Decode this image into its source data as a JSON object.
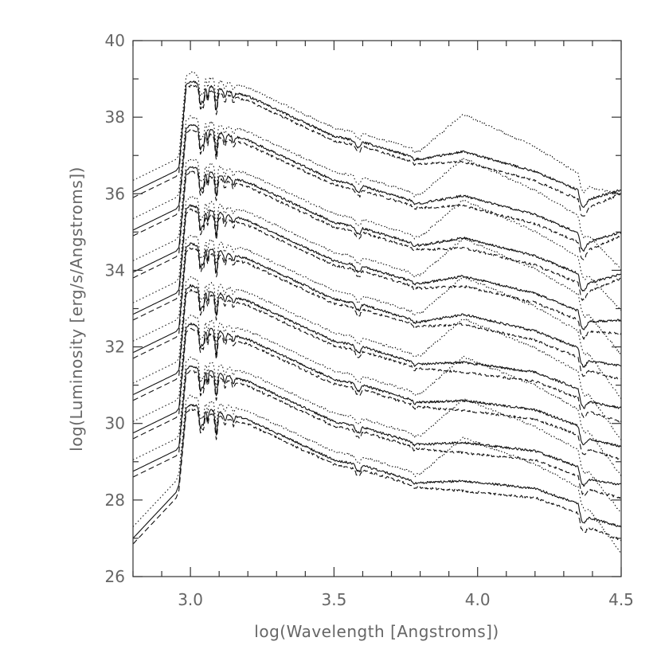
{
  "chart_data": {
    "type": "line",
    "title": "",
    "xlabel": "log(Wavelength [Angstroms])",
    "ylabel": "log(Luminosity [erg/s/Angstroms])",
    "xlim": [
      2.8,
      4.5
    ],
    "ylim": [
      26,
      40
    ],
    "x_major_ticks": [
      3.0,
      3.5,
      4.0,
      4.5
    ],
    "x_tick_labels": [
      "3.0",
      "3.5",
      "4.0",
      "4.5"
    ],
    "y_major_ticks": [
      26,
      28,
      30,
      32,
      34,
      36,
      38,
      40
    ],
    "y_tick_labels": [
      "26",
      "28",
      "30",
      "32",
      "34",
      "36",
      "38",
      "40"
    ],
    "grid": false,
    "curve_groups": [
      {
        "peak": 38.95,
        "uv": 36.6,
        "end_solid": 36.1
      },
      {
        "peak": 37.8,
        "uv": 35.6,
        "end_solid": 35.0
      },
      {
        "peak": 36.7,
        "uv": 34.5,
        "end_solid": 33.9
      },
      {
        "peak": 35.7,
        "uv": 33.4,
        "end_solid": 32.7
      },
      {
        "peak": 34.7,
        "uv": 32.4,
        "end_solid": 31.5
      },
      {
        "peak": 33.6,
        "uv": 31.3,
        "end_solid": 30.4
      },
      {
        "peak": 32.6,
        "uv": 30.3,
        "end_solid": 29.4
      },
      {
        "peak": 31.5,
        "uv": 29.3,
        "end_solid": 28.4
      },
      {
        "peak": 30.5,
        "uv": 27.8,
        "end_solid": 27.3
      }
    ],
    "series": [
      {
        "name": "solid",
        "style": "solid"
      },
      {
        "name": "dashed",
        "style": "dashed"
      },
      {
        "name": "dotted",
        "style": "dotted"
      }
    ]
  }
}
